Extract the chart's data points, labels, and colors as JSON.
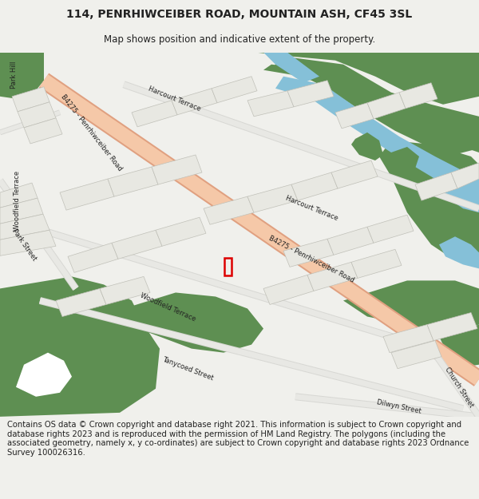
{
  "title": "114, PENRHIWCEIBER ROAD, MOUNTAIN ASH, CF45 3SL",
  "subtitle": "Map shows position and indicative extent of the property.",
  "footer": "Contains OS data © Crown copyright and database right 2021. This information is subject to Crown copyright and database rights 2023 and is reproduced with the permission of HM Land Registry. The polygons (including the associated geometry, namely x, y co-ordinates) are subject to Crown copyright and database rights 2023 Ordnance Survey 100026316.",
  "bg_color": "#f0f0ec",
  "map_bg": "#ffffff",
  "green_color": "#5e8f52",
  "blue_color": "#85c0d8",
  "road_color": "#f5c8a8",
  "road_edge_color": "#e0a080",
  "building_color": "#e8e8e2",
  "building_outline": "#c0c0b8",
  "property_color": "#dd0000",
  "text_color": "#222222",
  "title_fontsize": 10,
  "subtitle_fontsize": 8.5,
  "footer_fontsize": 7.2,
  "map_road_fontsize": 6.0
}
